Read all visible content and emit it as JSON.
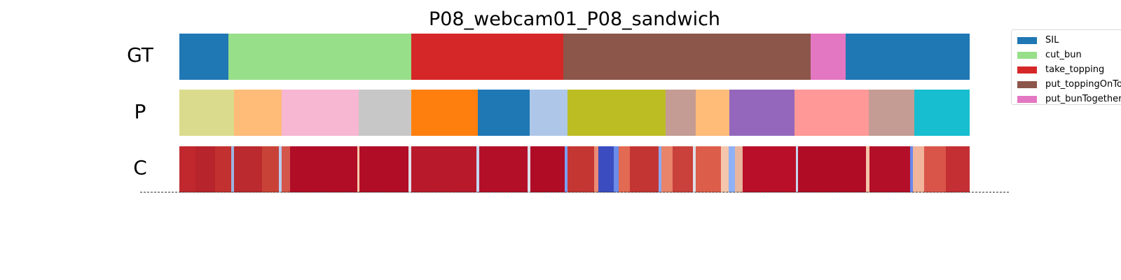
{
  "chart_data": {
    "type": "segmentation",
    "title": "P08_webcam01_P08_sandwich",
    "x_range": [
      0,
      100
    ],
    "rows": [
      {
        "label": "GT",
        "segments": [
          {
            "start": 0.0,
            "end": 6.2,
            "class": "SIL",
            "color": "#1f77b4"
          },
          {
            "start": 6.2,
            "end": 29.3,
            "class": "cut_bun",
            "color": "#98df8a"
          },
          {
            "start": 29.3,
            "end": 48.6,
            "class": "take_topping",
            "color": "#d62728"
          },
          {
            "start": 48.6,
            "end": 79.9,
            "class": "put_toppingOnTop",
            "color": "#8c564b"
          },
          {
            "start": 79.9,
            "end": 84.3,
            "class": "put_bunTogether",
            "color": "#e377c2"
          },
          {
            "start": 84.3,
            "end": 100.0,
            "class": "SIL",
            "color": "#1f77b4"
          }
        ]
      },
      {
        "label": "P",
        "segments": [
          {
            "start": 0.0,
            "end": 6.9,
            "color": "#dbdb8d"
          },
          {
            "start": 6.9,
            "end": 12.9,
            "color": "#ffbb78"
          },
          {
            "start": 12.9,
            "end": 22.7,
            "color": "#f7b6d2"
          },
          {
            "start": 22.7,
            "end": 29.3,
            "color": "#c7c7c7"
          },
          {
            "start": 29.3,
            "end": 37.8,
            "color": "#ff7f0e"
          },
          {
            "start": 37.8,
            "end": 44.3,
            "color": "#1f77b4"
          },
          {
            "start": 44.3,
            "end": 49.1,
            "color": "#aec7e8"
          },
          {
            "start": 49.1,
            "end": 61.5,
            "color": "#bcbd22"
          },
          {
            "start": 61.5,
            "end": 65.3,
            "color": "#c49c94"
          },
          {
            "start": 65.3,
            "end": 69.6,
            "color": "#ffbb78"
          },
          {
            "start": 69.6,
            "end": 77.8,
            "color": "#9467bd"
          },
          {
            "start": 77.8,
            "end": 87.2,
            "color": "#ff9896"
          },
          {
            "start": 87.2,
            "end": 93.0,
            "color": "#c49c94"
          },
          {
            "start": 93.0,
            "end": 100.0,
            "color": "#17becf"
          }
        ]
      },
      {
        "label": "C",
        "colormap": "coolwarm",
        "segments": [
          {
            "start": 0.0,
            "end": 2.0,
            "color": "#c0282d"
          },
          {
            "start": 2.0,
            "end": 4.5,
            "color": "#b8242c"
          },
          {
            "start": 4.5,
            "end": 6.6,
            "color": "#c2302f"
          },
          {
            "start": 6.6,
            "end": 6.9,
            "color": "#9db4e0"
          },
          {
            "start": 6.9,
            "end": 10.5,
            "color": "#ba2a2e"
          },
          {
            "start": 10.5,
            "end": 12.6,
            "color": "#c94237"
          },
          {
            "start": 12.6,
            "end": 12.9,
            "color": "#b9cdf0"
          },
          {
            "start": 12.9,
            "end": 14.0,
            "color": "#d4564a"
          },
          {
            "start": 14.0,
            "end": 22.5,
            "color": "#b10d27"
          },
          {
            "start": 22.5,
            "end": 22.8,
            "color": "#f6c8a8"
          },
          {
            "start": 22.8,
            "end": 29.0,
            "color": "#b10d27"
          },
          {
            "start": 29.0,
            "end": 29.3,
            "color": "#dfdfe6"
          },
          {
            "start": 29.3,
            "end": 37.6,
            "color": "#b81a2c"
          },
          {
            "start": 37.6,
            "end": 37.9,
            "color": "#c5d6f2"
          },
          {
            "start": 37.9,
            "end": 44.1,
            "color": "#b40f28"
          },
          {
            "start": 44.1,
            "end": 44.4,
            "color": "#dcdde9"
          },
          {
            "start": 44.4,
            "end": 48.8,
            "color": "#b00c26"
          },
          {
            "start": 48.8,
            "end": 49.1,
            "color": "#7b9ff2"
          },
          {
            "start": 49.1,
            "end": 52.5,
            "color": "#c43632"
          },
          {
            "start": 52.5,
            "end": 53.0,
            "color": "#e98a74"
          },
          {
            "start": 53.0,
            "end": 55.0,
            "color": "#3b4cc0"
          },
          {
            "start": 55.0,
            "end": 55.6,
            "color": "#6b8ce8"
          },
          {
            "start": 55.6,
            "end": 57.0,
            "color": "#e26952"
          },
          {
            "start": 57.0,
            "end": 60.6,
            "color": "#c33533"
          },
          {
            "start": 60.6,
            "end": 61.0,
            "color": "#8aa8f0"
          },
          {
            "start": 61.0,
            "end": 62.4,
            "color": "#e8846a"
          },
          {
            "start": 62.4,
            "end": 65.0,
            "color": "#c9413a"
          },
          {
            "start": 65.0,
            "end": 65.3,
            "color": "#dfdfe6"
          },
          {
            "start": 65.3,
            "end": 68.5,
            "color": "#dc5d4a"
          },
          {
            "start": 68.5,
            "end": 69.5,
            "color": "#f4c6ad"
          },
          {
            "start": 69.5,
            "end": 70.3,
            "color": "#8fb1f7"
          },
          {
            "start": 70.3,
            "end": 71.3,
            "color": "#e8b69e"
          },
          {
            "start": 71.3,
            "end": 78.0,
            "color": "#b90f29"
          },
          {
            "start": 78.0,
            "end": 78.3,
            "color": "#c9d7f0"
          },
          {
            "start": 78.3,
            "end": 86.9,
            "color": "#b00c26"
          },
          {
            "start": 86.9,
            "end": 87.3,
            "color": "#f4c3a6"
          },
          {
            "start": 87.3,
            "end": 92.5,
            "color": "#b40f28"
          },
          {
            "start": 92.5,
            "end": 92.8,
            "color": "#6688ee"
          },
          {
            "start": 92.8,
            "end": 94.2,
            "color": "#f2b49a"
          },
          {
            "start": 94.2,
            "end": 97.0,
            "color": "#d9554a"
          },
          {
            "start": 97.0,
            "end": 100.0,
            "color": "#c32f33"
          }
        ]
      }
    ],
    "legend": {
      "placement": "top-right",
      "entries": [
        {
          "label": "SIL",
          "color": "#1f77b4"
        },
        {
          "label": "cut_bun",
          "color": "#98df8a"
        },
        {
          "label": "take_topping",
          "color": "#d62728"
        },
        {
          "label": "put_toppingOnTop",
          "color": "#8c564b"
        },
        {
          "label": "put_bunTogether",
          "color": "#e377c2"
        }
      ]
    },
    "baseline": "dashed"
  }
}
